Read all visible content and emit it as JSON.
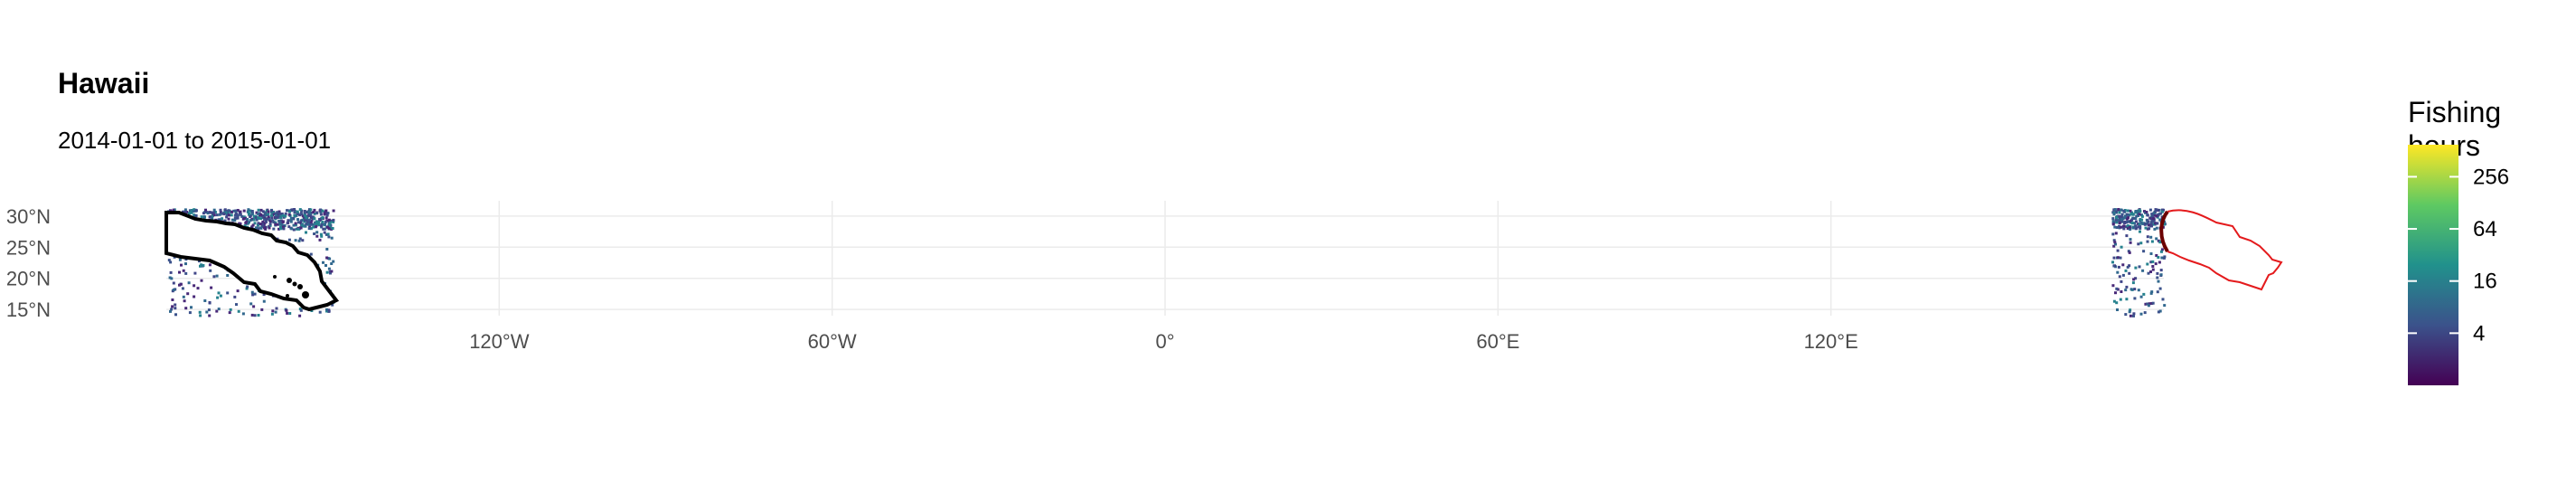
{
  "title": "Hawaii",
  "subtitle": "2014-01-01 to 2015-01-01",
  "legend": {
    "title": "Fishing hours",
    "ticks": [
      {
        "label": "256",
        "value": 256
      },
      {
        "label": "64",
        "value": 64
      },
      {
        "label": "16",
        "value": 16
      },
      {
        "label": "4",
        "value": 4
      }
    ],
    "log_scale": true,
    "min": 1,
    "max": 600,
    "colors": [
      "#440154",
      "#3b528b",
      "#21918c",
      "#5ec962",
      "#fde725"
    ]
  },
  "map": {
    "x_ticks": [
      {
        "label": "120°W",
        "lon": -120
      },
      {
        "label": "60°W",
        "lon": -60
      },
      {
        "label": "0°",
        "lon": 0
      },
      {
        "label": "60°E",
        "lon": 60
      },
      {
        "label": "120°E",
        "lon": 120
      }
    ],
    "y_ticks": [
      {
        "label": "30°N",
        "lat": 30
      },
      {
        "label": "25°N",
        "lat": 25
      },
      {
        "label": "20°N",
        "lat": 20
      },
      {
        "label": "15°N",
        "lat": 15
      }
    ],
    "lon_range": [
      -180,
      180
    ],
    "lat_range": [
      14,
      31
    ],
    "grid": true,
    "eez_outline_color": "#000000",
    "wrapped_outline_color": "#e41a1c"
  }
}
